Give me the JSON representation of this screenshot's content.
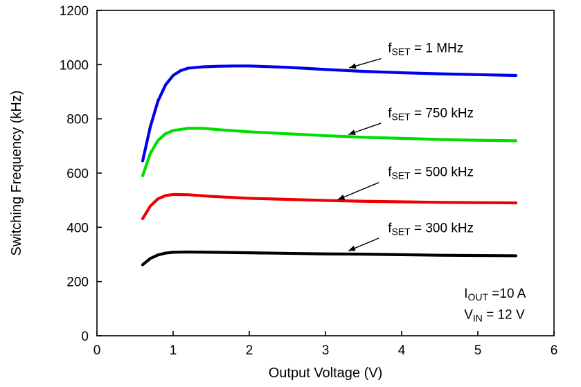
{
  "chart_data": {
    "type": "line",
    "title": "",
    "xlabel": "Output Voltage (V)",
    "ylabel": "Switching Frequency (kHz)",
    "xlim": [
      0,
      6
    ],
    "ylim": [
      0,
      1200
    ],
    "xticks": [
      0,
      1,
      2,
      3,
      4,
      5,
      6
    ],
    "yticks": [
      0,
      200,
      400,
      600,
      800,
      1000,
      1200
    ],
    "grid": false,
    "legend_position": "none",
    "series": [
      {
        "name": "fSET = 1 MHz",
        "color": "#0000ee",
        "x": [
          0.6,
          0.7,
          0.8,
          0.9,
          1.0,
          1.1,
          1.2,
          1.4,
          1.6,
          1.8,
          2.0,
          2.2,
          2.5,
          3.0,
          3.5,
          4.0,
          4.5,
          5.0,
          5.5
        ],
        "y": [
          645,
          770,
          865,
          925,
          960,
          978,
          987,
          992,
          994,
          995,
          995,
          993,
          990,
          982,
          975,
          970,
          966,
          963,
          960
        ]
      },
      {
        "name": "fSET = 750 kHz",
        "color": "#00dd00",
        "x": [
          0.6,
          0.7,
          0.8,
          0.9,
          1.0,
          1.2,
          1.4,
          1.6,
          2.0,
          2.5,
          3.0,
          3.5,
          4.0,
          4.5,
          5.0,
          5.5
        ],
        "y": [
          590,
          672,
          720,
          745,
          757,
          765,
          765,
          760,
          752,
          745,
          738,
          732,
          728,
          724,
          721,
          719
        ]
      },
      {
        "name": "fSET = 500 kHz",
        "color": "#ee0000",
        "x": [
          0.6,
          0.7,
          0.8,
          0.9,
          1.0,
          1.2,
          1.5,
          2.0,
          2.5,
          3.0,
          3.5,
          4.0,
          4.5,
          5.0,
          5.5
        ],
        "y": [
          432,
          478,
          505,
          517,
          521,
          520,
          514,
          507,
          503,
          499,
          496,
          494,
          492,
          491,
          490
        ]
      },
      {
        "name": "fSET = 300 kHz",
        "color": "#000000",
        "x": [
          0.6,
          0.7,
          0.8,
          0.9,
          1.0,
          1.2,
          1.5,
          2.0,
          2.5,
          3.0,
          3.5,
          4.0,
          4.5,
          5.0,
          5.5
        ],
        "y": [
          262,
          285,
          298,
          305,
          308,
          309,
          308,
          306,
          304,
          302,
          301,
          299,
          297,
          296,
          295
        ]
      }
    ],
    "annotations": [
      {
        "name": "fset-1mhz-label",
        "parts": [
          {
            "t": "f"
          },
          {
            "t": "SET",
            "sub": true
          },
          {
            "t": " = 1 MHz"
          }
        ],
        "x": 3.82,
        "y": 1045,
        "arrow": {
          "x1": 3.73,
          "y1": 1022,
          "x2": 3.31,
          "y2": 988
        }
      },
      {
        "name": "fset-750khz-label",
        "parts": [
          {
            "t": "f"
          },
          {
            "t": "SET",
            "sub": true
          },
          {
            "t": " = 750 kHz"
          }
        ],
        "x": 3.82,
        "y": 806,
        "arrow": {
          "x1": 3.73,
          "y1": 784,
          "x2": 3.3,
          "y2": 742
        }
      },
      {
        "name": "fset-500khz-label",
        "parts": [
          {
            "t": "f"
          },
          {
            "t": "SET",
            "sub": true
          },
          {
            "t": " = 500 kHz"
          }
        ],
        "x": 3.82,
        "y": 588,
        "arrow": {
          "x1": 3.7,
          "y1": 565,
          "x2": 3.16,
          "y2": 502
        }
      },
      {
        "name": "fset-300khz-label",
        "parts": [
          {
            "t": "f"
          },
          {
            "t": "SET",
            "sub": true
          },
          {
            "t": " = 300 kHz"
          }
        ],
        "x": 3.82,
        "y": 382,
        "arrow": {
          "x1": 3.7,
          "y1": 360,
          "x2": 3.3,
          "y2": 313
        }
      },
      {
        "name": "iout-label",
        "parts": [
          {
            "t": "I"
          },
          {
            "t": "OUT",
            "sub": true
          },
          {
            "t": " =10 A"
          }
        ],
        "x": 4.82,
        "y": 140
      },
      {
        "name": "vin-label",
        "parts": [
          {
            "t": "V"
          },
          {
            "t": "IN",
            "sub": true
          },
          {
            "t": " = 12 V"
          }
        ],
        "x": 4.82,
        "y": 62
      }
    ]
  }
}
